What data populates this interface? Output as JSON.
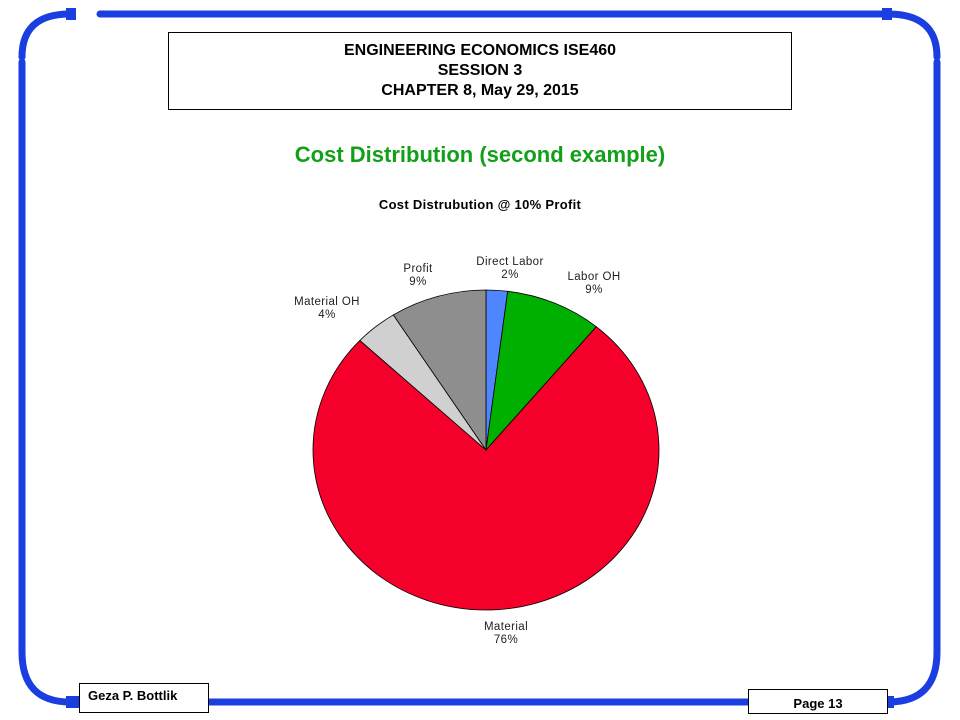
{
  "header": {
    "line1": "ENGINEERING ECONOMICS ISE460",
    "line2": "SESSION 3",
    "line3": "CHAPTER 8, May 29, 2015"
  },
  "slide_title": "Cost Distribution (second example)",
  "footer": {
    "author": "Geza P. Bottlik",
    "page": "Page 13"
  },
  "colors": {
    "frame": "#1b3ee0",
    "title": "#13a019"
  },
  "chart_data": {
    "type": "pie",
    "title": "Cost Distrubution @ 10% Profit",
    "slices": [
      {
        "name": "Direct Labor",
        "value": 2,
        "label": "2%",
        "color": "#4f86ff"
      },
      {
        "name": "Labor OH",
        "value": 9,
        "label": "9%",
        "color": "#00b000"
      },
      {
        "name": "Material",
        "value": 76,
        "label": "76%",
        "color": "#f5002a"
      },
      {
        "name": "Material OH",
        "value": 4,
        "label": "4%",
        "color": "#d0d0d0"
      },
      {
        "name": "Profit",
        "value": 9,
        "label": "9%",
        "color": "#8e8e8e"
      }
    ]
  }
}
